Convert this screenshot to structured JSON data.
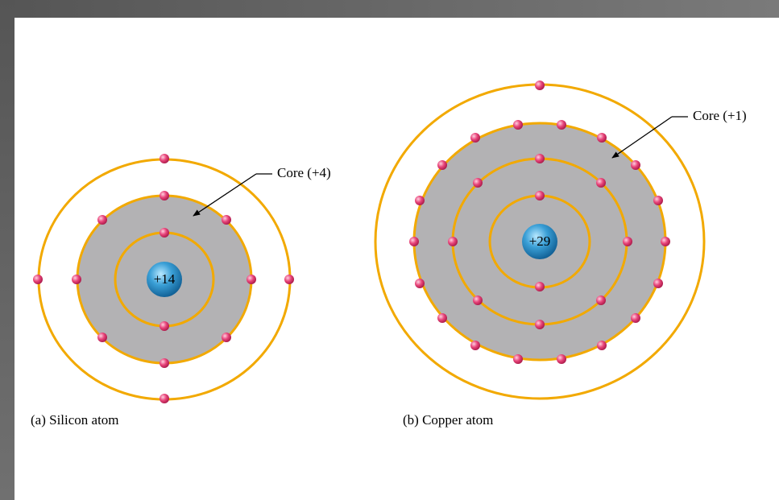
{
  "atoms": [
    {
      "nucleus": "+14",
      "core_label": "Core (+4)",
      "caption": "(a) Silicon atom"
    },
    {
      "nucleus": "+29",
      "core_label": "Core (+1)",
      "caption": "(b) Copper atom"
    }
  ]
}
